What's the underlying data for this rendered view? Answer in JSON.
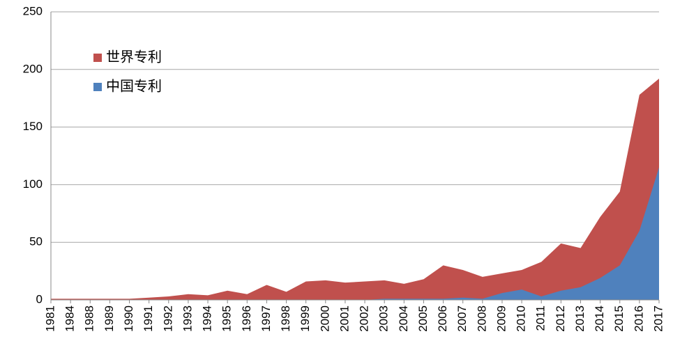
{
  "chart_data": {
    "type": "area",
    "categories": [
      "1981",
      "1984",
      "1988",
      "1989",
      "1990",
      "1991",
      "1992",
      "1993",
      "1994",
      "1995",
      "1996",
      "1997",
      "1998",
      "1999",
      "2000",
      "2001",
      "2002",
      "2003",
      "2004",
      "2005",
      "2006",
      "2007",
      "2008",
      "2009",
      "2010",
      "2011",
      "2012",
      "2013",
      "2014",
      "2015",
      "2016",
      "2017"
    ],
    "series": [
      {
        "name": "世界专利",
        "color": "#c0504d",
        "values": [
          1,
          1,
          1,
          1,
          1,
          2,
          3,
          5,
          4,
          8,
          5,
          13,
          7,
          16,
          17,
          15,
          16,
          17,
          14,
          18,
          30,
          26,
          20,
          23,
          26,
          33,
          49,
          45,
          72,
          94,
          178,
          192
        ]
      },
      {
        "name": "中国专利",
        "color": "#4f81bd",
        "values": [
          0,
          0,
          0,
          0,
          0,
          0,
          0,
          0,
          0,
          0,
          0,
          0,
          0,
          0,
          0,
          0,
          0,
          1,
          1,
          1,
          1,
          2,
          1,
          6,
          9,
          3,
          8,
          11,
          19,
          30,
          60,
          115
        ]
      }
    ],
    "ylim": [
      0,
      250
    ],
    "yticks": [
      0,
      50,
      100,
      150,
      200,
      250
    ],
    "grid": true,
    "legend": "upper left"
  }
}
